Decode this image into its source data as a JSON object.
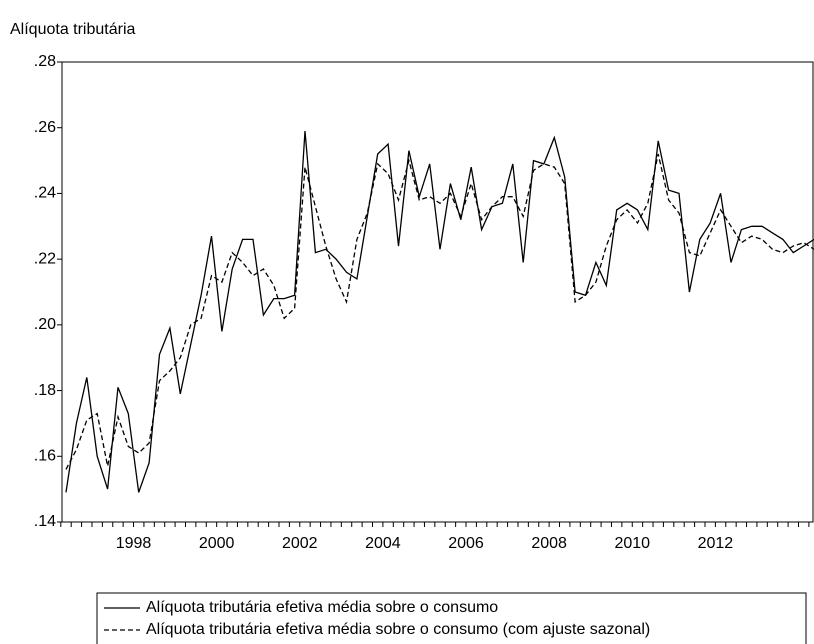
{
  "chart_data": {
    "type": "line",
    "y_axis_label": "Alíquota tributária",
    "categories": [
      null,
      null,
      null,
      null,
      null,
      null,
      "1998",
      null,
      null,
      null,
      null,
      null,
      null,
      null,
      "2000",
      null,
      null,
      null,
      null,
      null,
      null,
      null,
      "2002",
      null,
      null,
      null,
      null,
      null,
      null,
      null,
      "2004",
      null,
      null,
      null,
      null,
      null,
      null,
      null,
      "2006",
      null,
      null,
      null,
      null,
      null,
      null,
      null,
      "2008",
      null,
      null,
      null,
      null,
      null,
      null,
      null,
      "2010",
      null,
      null,
      null,
      null,
      null,
      null,
      null,
      "2012",
      null,
      null,
      null,
      null,
      null,
      null,
      null,
      null,
      null,
      null
    ],
    "ylim": [
      0.14,
      0.28
    ],
    "yticks": [
      {
        "value": 0.14,
        "label": ".14"
      },
      {
        "value": 0.16,
        "label": ".16"
      },
      {
        "value": 0.18,
        "label": ".18"
      },
      {
        "value": 0.2,
        "label": ".20"
      },
      {
        "value": 0.22,
        "label": ".22"
      },
      {
        "value": 0.24,
        "label": ".24"
      },
      {
        "value": 0.26,
        "label": ".26"
      },
      {
        "value": 0.28,
        "label": ".28"
      }
    ],
    "series": [
      {
        "name": "Alíquota tributária efetiva média sobre o consumo",
        "color": "#000000",
        "style": "solid",
        "values": [
          0.149,
          0.17,
          0.184,
          0.16,
          0.15,
          0.181,
          0.173,
          0.149,
          0.158,
          0.191,
          0.199,
          0.179,
          0.194,
          0.209,
          0.227,
          0.198,
          0.217,
          0.226,
          0.226,
          0.203,
          0.208,
          0.208,
          0.209,
          0.259,
          0.222,
          0.223,
          0.22,
          0.216,
          0.214,
          0.233,
          0.252,
          0.255,
          0.224,
          0.253,
          0.239,
          0.249,
          0.223,
          0.243,
          0.232,
          0.248,
          0.229,
          0.236,
          0.237,
          0.249,
          0.219,
          0.25,
          0.249,
          0.257,
          0.245,
          0.21,
          0.209,
          0.219,
          0.212,
          0.235,
          0.237,
          0.235,
          0.229,
          0.256,
          0.241,
          0.24,
          0.21,
          0.226,
          0.231,
          0.24,
          0.219,
          0.229,
          0.23,
          0.23,
          0.228,
          0.226,
          0.222,
          0.224,
          0.226
        ]
      },
      {
        "name": "Alíquota tributária efetiva média sobre o consumo (com ajuste sazonal)",
        "color": "#000000",
        "style": "dashed",
        "values": [
          0.156,
          0.162,
          0.171,
          0.173,
          0.157,
          0.172,
          0.163,
          0.161,
          0.164,
          0.183,
          0.186,
          0.19,
          0.2,
          0.202,
          0.215,
          0.213,
          0.222,
          0.219,
          0.215,
          0.217,
          0.212,
          0.202,
          0.205,
          0.248,
          0.236,
          0.224,
          0.214,
          0.207,
          0.226,
          0.234,
          0.249,
          0.246,
          0.238,
          0.25,
          0.238,
          0.239,
          0.237,
          0.24,
          0.233,
          0.243,
          0.232,
          0.236,
          0.239,
          0.239,
          0.233,
          0.247,
          0.249,
          0.248,
          0.243,
          0.207,
          0.209,
          0.213,
          0.224,
          0.232,
          0.235,
          0.231,
          0.237,
          0.252,
          0.238,
          0.234,
          0.222,
          0.221,
          0.228,
          0.235,
          0.23,
          0.225,
          0.227,
          0.226,
          0.223,
          0.222,
          0.224,
          0.225,
          0.223
        ]
      }
    ]
  }
}
